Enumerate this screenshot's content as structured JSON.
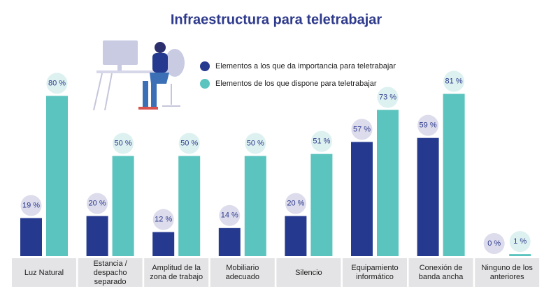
{
  "chart_data": {
    "type": "bar",
    "title": "Infraestructura para teletrabajar",
    "categories": [
      "Luz Natural",
      "Estancia / despacho separado",
      "Amplitud de la zona de trabajo",
      "Mobiliario adecuado",
      "Silencio",
      "Equipamiento informático",
      "Conexión de banda ancha",
      "Ninguno de los anteriores"
    ],
    "series": [
      {
        "name": "Elementos a los que da importancia para teletrabajar",
        "color": "#253a8f",
        "values": [
          19,
          20,
          12,
          14,
          20,
          57,
          59,
          0
        ],
        "value_labels": [
          "19 %",
          "20 %",
          "12 %",
          "14 %",
          "20 %",
          "57 %",
          "59 %",
          "0 %"
        ]
      },
      {
        "name": "Elementos de los que dispone para teletrabajar",
        "color": "#5bc4bf",
        "values": [
          80,
          50,
          50,
          50,
          51,
          73,
          81,
          1
        ],
        "value_labels": [
          "80 %",
          "50 %",
          "50 %",
          "50 %",
          "51 %",
          "73 %",
          "81 %",
          "1 %"
        ]
      }
    ]
  }
}
